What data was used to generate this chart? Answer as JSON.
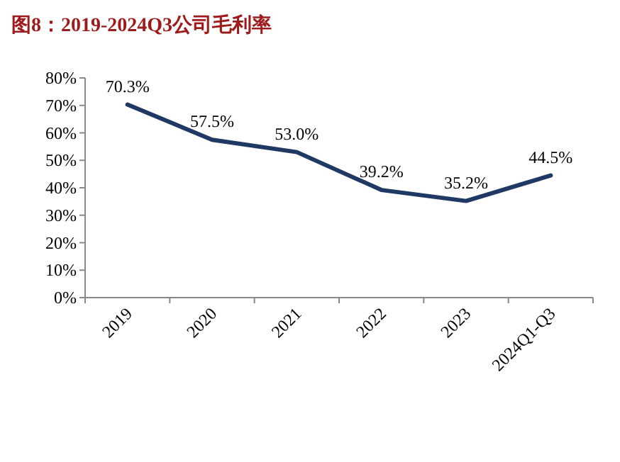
{
  "chart_data": {
    "type": "line",
    "title": "图8：2019-2024Q3公司毛利率",
    "categories": [
      "2019",
      "2020",
      "2021",
      "2022",
      "2023",
      "2024Q1-Q3"
    ],
    "series": [
      {
        "color": "#203864",
        "values": [
          70.3,
          57.5,
          53.0,
          39.2,
          35.2,
          44.5
        ],
        "value_labels": [
          "70.3%",
          "57.5%",
          "53.0%",
          "39.2%",
          "35.2%",
          "44.5%"
        ]
      }
    ],
    "ylim": [
      0,
      80
    ],
    "yticks": [
      {
        "value": 0,
        "label": "0%"
      },
      {
        "value": 10,
        "label": "10%"
      },
      {
        "value": 20,
        "label": "20%"
      },
      {
        "value": 30,
        "label": "30%"
      },
      {
        "value": 40,
        "label": "40%"
      },
      {
        "value": 50,
        "label": "50%"
      },
      {
        "value": 60,
        "label": "60%"
      },
      {
        "value": 70,
        "label": "70%"
      },
      {
        "value": 80,
        "label": "80%"
      }
    ],
    "grid": false,
    "marker": "none",
    "line_style": "solid"
  }
}
